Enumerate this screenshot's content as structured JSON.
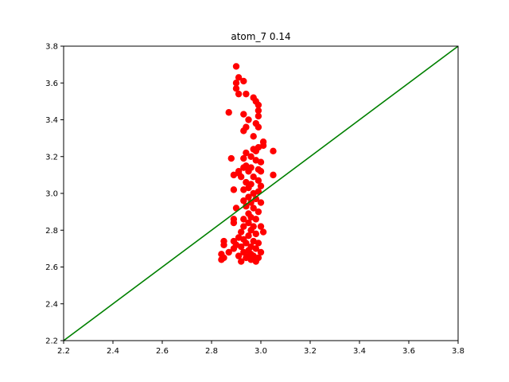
{
  "chart_data": {
    "type": "scatter",
    "title": "atom_7 0.14",
    "xlabel": "",
    "ylabel": "",
    "xlim": [
      2.2,
      3.8
    ],
    "ylim": [
      2.2,
      3.8
    ],
    "xticks": [
      "2.2",
      "2.4",
      "2.6",
      "2.8",
      "3.0",
      "3.2",
      "3.4",
      "3.6",
      "3.8"
    ],
    "yticks": [
      "2.2",
      "2.4",
      "2.6",
      "2.8",
      "3.0",
      "3.2",
      "3.4",
      "3.6",
      "3.8"
    ],
    "grid": false,
    "series": [
      {
        "name": "points",
        "color": "#ff0000",
        "points": [
          [
            2.9,
            3.69
          ],
          [
            2.91,
            3.63
          ],
          [
            2.9,
            3.6
          ],
          [
            2.9,
            3.57
          ],
          [
            2.93,
            3.61
          ],
          [
            2.91,
            3.54
          ],
          [
            2.94,
            3.54
          ],
          [
            2.97,
            3.52
          ],
          [
            2.98,
            3.5
          ],
          [
            2.99,
            3.48
          ],
          [
            2.99,
            3.45
          ],
          [
            2.87,
            3.44
          ],
          [
            2.93,
            3.43
          ],
          [
            2.99,
            3.42
          ],
          [
            2.95,
            3.4
          ],
          [
            2.98,
            3.38
          ],
          [
            2.99,
            3.36
          ],
          [
            2.94,
            3.36
          ],
          [
            2.93,
            3.34
          ],
          [
            2.97,
            3.31
          ],
          [
            3.01,
            3.28
          ],
          [
            3.01,
            3.26
          ],
          [
            2.99,
            3.25
          ],
          [
            2.97,
            3.24
          ],
          [
            2.98,
            3.23
          ],
          [
            3.05,
            3.23
          ],
          [
            2.94,
            3.22
          ],
          [
            2.96,
            3.2
          ],
          [
            2.88,
            3.19
          ],
          [
            2.93,
            3.19
          ],
          [
            2.98,
            3.18
          ],
          [
            3.0,
            3.17
          ],
          [
            2.94,
            3.15
          ],
          [
            2.93,
            3.14
          ],
          [
            2.96,
            3.14
          ],
          [
            2.99,
            3.13
          ],
          [
            3.0,
            3.12
          ],
          [
            2.91,
            3.12
          ],
          [
            2.95,
            3.12
          ],
          [
            2.89,
            3.1
          ],
          [
            2.91,
            3.11
          ],
          [
            2.92,
            3.09
          ],
          [
            2.97,
            3.09
          ],
          [
            3.05,
            3.1
          ],
          [
            2.99,
            3.07
          ],
          [
            2.94,
            3.06
          ],
          [
            2.96,
            3.05
          ],
          [
            3.0,
            3.04
          ],
          [
            2.95,
            3.03
          ],
          [
            2.89,
            3.02
          ],
          [
            2.93,
            3.02
          ],
          [
            2.99,
            3.01
          ],
          [
            2.97,
            3.0
          ],
          [
            2.95,
            2.98
          ],
          [
            2.98,
            2.97
          ],
          [
            2.93,
            2.96
          ],
          [
            2.96,
            2.95
          ],
          [
            3.0,
            2.95
          ],
          [
            2.94,
            2.93
          ],
          [
            2.9,
            2.92
          ],
          [
            2.97,
            2.92
          ],
          [
            2.99,
            2.9
          ],
          [
            2.95,
            2.89
          ],
          [
            2.96,
            2.87
          ],
          [
            2.93,
            2.86
          ],
          [
            2.89,
            2.86
          ],
          [
            2.98,
            2.86
          ],
          [
            2.95,
            2.84
          ],
          [
            2.89,
            2.84
          ],
          [
            2.93,
            2.82
          ],
          [
            2.97,
            2.82
          ],
          [
            3.0,
            2.82
          ],
          [
            2.96,
            2.8
          ],
          [
            2.92,
            2.79
          ],
          [
            3.01,
            2.79
          ],
          [
            2.98,
            2.78
          ],
          [
            2.95,
            2.77
          ],
          [
            2.91,
            2.76
          ],
          [
            2.93,
            2.75
          ],
          [
            2.89,
            2.74
          ],
          [
            2.85,
            2.74
          ],
          [
            2.97,
            2.74
          ],
          [
            2.94,
            2.73
          ],
          [
            2.99,
            2.73
          ],
          [
            2.85,
            2.72
          ],
          [
            2.9,
            2.72
          ],
          [
            2.96,
            2.71
          ],
          [
            2.92,
            2.71
          ],
          [
            2.89,
            2.7
          ],
          [
            2.98,
            2.7
          ],
          [
            2.95,
            2.69
          ],
          [
            2.87,
            2.68
          ],
          [
            2.93,
            2.68
          ],
          [
            3.0,
            2.68
          ],
          [
            2.84,
            2.67
          ],
          [
            2.96,
            2.67
          ],
          [
            2.91,
            2.66
          ],
          [
            2.97,
            2.66
          ],
          [
            2.85,
            2.65
          ],
          [
            2.94,
            2.65
          ],
          [
            2.99,
            2.65
          ],
          [
            2.96,
            2.64
          ],
          [
            2.84,
            2.64
          ],
          [
            2.98,
            2.63
          ],
          [
            2.92,
            2.63
          ],
          [
            2.95,
            2.66
          ]
        ]
      }
    ],
    "reference_line": {
      "name": "y = x",
      "color": "#008000",
      "points": [
        [
          2.2,
          2.2
        ],
        [
          3.8,
          3.8
        ]
      ]
    }
  }
}
